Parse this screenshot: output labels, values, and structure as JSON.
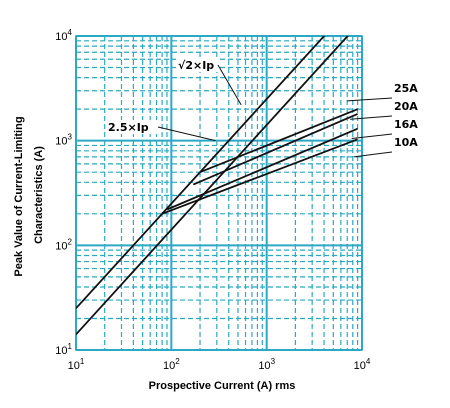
{
  "chart_data": {
    "type": "line",
    "xscale": "log",
    "yscale": "log",
    "xlim": [
      10,
      10000
    ],
    "ylim": [
      10,
      10000
    ],
    "xlabel": "Prospective Current (A) rms",
    "ylabel": "Peak Value of Current-Limiting Characteristics (A)",
    "ylabel_lines": [
      "Peak Value of Current-Limiting",
      "Characteristics (A)"
    ],
    "grid": "major and minor, dashed, cyan",
    "grid_color": "#2aa8c4",
    "line_color": "#111111",
    "x_ticks": [
      {
        "value": 10,
        "base": "10",
        "exp": "1"
      },
      {
        "value": 100,
        "base": "10",
        "exp": "2"
      },
      {
        "value": 1000,
        "base": "10",
        "exp": "3"
      },
      {
        "value": 10000,
        "base": "10",
        "exp": "4"
      }
    ],
    "y_ticks": [
      {
        "value": 10,
        "base": "10",
        "exp": "1"
      },
      {
        "value": 100,
        "base": "10",
        "exp": "2"
      },
      {
        "value": 1000,
        "base": "10",
        "exp": "3"
      },
      {
        "value": 10000,
        "base": "10",
        "exp": "4"
      }
    ],
    "series": [
      {
        "name": "√2×Ip",
        "x": [
          10,
          9000
        ],
        "y": [
          14.1,
          12700
        ]
      },
      {
        "name": "2.5×Ip",
        "x": [
          10,
          6000
        ],
        "y": [
          25,
          15000
        ]
      },
      {
        "name": "25A",
        "x": [
          200,
          9000
        ],
        "y": [
          500,
          2000
        ]
      },
      {
        "name": "20A",
        "x": [
          170,
          9000
        ],
        "y": [
          380,
          1800
        ]
      },
      {
        "name": "16A",
        "x": [
          90,
          9000
        ],
        "y": [
          220,
          1300
        ]
      },
      {
        "name": "10A",
        "x": [
          80,
          9000
        ],
        "y": [
          200,
          1030
        ]
      }
    ],
    "annotations": [
      {
        "text": "√2×Ip",
        "x": 540,
        "y": 2200
      },
      {
        "text": "2.5×Ip",
        "x": 290,
        "y": 1000
      }
    ],
    "legend_labels": [
      {
        "text": "25A",
        "series": "25A",
        "y": 2400,
        "x": 7000
      },
      {
        "text": "20A",
        "series": "20A",
        "y": 1600,
        "x": 7500
      },
      {
        "text": "16A",
        "series": "16A",
        "y": 1050,
        "x": 7800
      },
      {
        "text": "10A",
        "series": "10A",
        "y": 700,
        "x": 8200
      }
    ]
  }
}
